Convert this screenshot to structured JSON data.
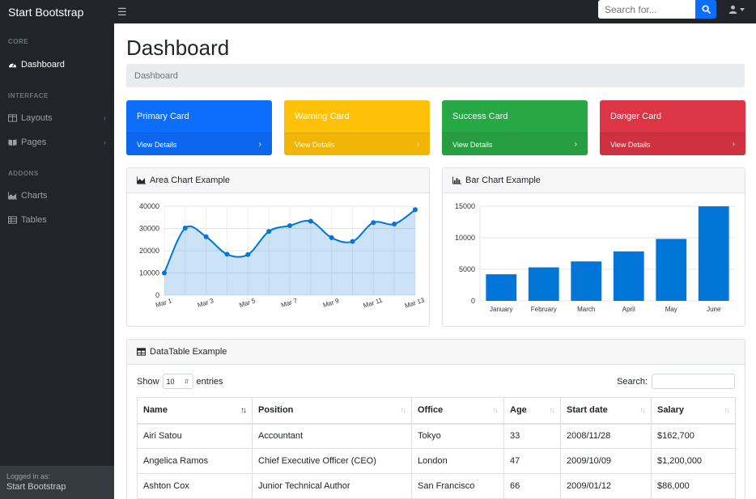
{
  "navbar": {
    "brand": "Start Bootstrap",
    "toggle_icon": "hamburger-icon",
    "search_placeholder": "Search for...",
    "search_icon": "search-icon",
    "user_icon": "user-icon"
  },
  "sidebar": {
    "sections": [
      {
        "heading": "CORE",
        "items": [
          {
            "label": "Dashboard",
            "icon": "speedometer-icon",
            "active": true
          }
        ]
      },
      {
        "heading": "INTERFACE",
        "items": [
          {
            "label": "Layouts",
            "icon": "columns-icon"
          },
          {
            "label": "Pages",
            "icon": "book-open-icon"
          }
        ]
      },
      {
        "heading": "ADDONS",
        "items": [
          {
            "label": "Charts",
            "icon": "area-chart-icon"
          },
          {
            "label": "Tables",
            "icon": "table-icon"
          }
        ]
      }
    ],
    "footer": {
      "small": "Logged in as:",
      "name": "Start Bootstrap"
    }
  },
  "main": {
    "title": "Dashboard",
    "breadcrumb": "Dashboard",
    "cards": [
      {
        "title": "Primary Card",
        "link": "View Details",
        "color": "#0d6efd"
      },
      {
        "title": "Warning Card",
        "link": "View Details",
        "color": "#ffc107"
      },
      {
        "title": "Success Card",
        "link": "View Details",
        "color": "#28a745"
      },
      {
        "title": "Danger Card",
        "link": "View Details",
        "color": "#dc3545"
      }
    ],
    "area_panel_title": "Area Chart Example",
    "bar_panel_title": "Bar Chart Example",
    "table_panel_title": "DataTable Example"
  },
  "chart_data": [
    {
      "type": "area",
      "title": "",
      "x": [
        "Mar 1",
        "Mar 2",
        "Mar 3",
        "Mar 4",
        "Mar 5",
        "Mar 6",
        "Mar 7",
        "Mar 8",
        "Mar 9",
        "Mar 10",
        "Mar 11",
        "Mar 12",
        "Mar 13"
      ],
      "x_tick_labels": [
        "Mar 1",
        "Mar 3",
        "Mar 5",
        "Mar 7",
        "Mar 9",
        "Mar 11",
        "Mar 13"
      ],
      "values": [
        10000,
        30162,
        26263,
        18394,
        18287,
        28682,
        31274,
        33259,
        25849,
        24159,
        32651,
        31984,
        38451
      ],
      "ylim": [
        0,
        40000
      ],
      "y_ticks": [
        "0",
        "10000",
        "20000",
        "30000",
        "40000"
      ],
      "grid": true,
      "color": "#0275d8"
    },
    {
      "type": "bar",
      "title": "",
      "categories": [
        "January",
        "February",
        "March",
        "April",
        "May",
        "June"
      ],
      "values": [
        4215,
        5312,
        6251,
        7841,
        9821,
        14984
      ],
      "ylim": [
        0,
        15000
      ],
      "y_ticks": [
        "0",
        "5000",
        "10000",
        "15000"
      ],
      "grid": true,
      "color": "#0275d8"
    }
  ],
  "datatable": {
    "show_label": "Show",
    "entries_value": "10",
    "entries_label": "entries",
    "search_label": "Search:",
    "columns": [
      "Name",
      "Position",
      "Office",
      "Age",
      "Start date",
      "Salary"
    ],
    "rows": [
      [
        "Airi Satou",
        "Accountant",
        "Tokyo",
        "33",
        "2008/11/28",
        "$162,700"
      ],
      [
        "Angelica Ramos",
        "Chief Executive Officer (CEO)",
        "London",
        "47",
        "2009/10/09",
        "$1,200,000"
      ],
      [
        "Ashton Cox",
        "Junior Technical Author",
        "San Francisco",
        "66",
        "2009/01/12",
        "$86,000"
      ]
    ]
  }
}
